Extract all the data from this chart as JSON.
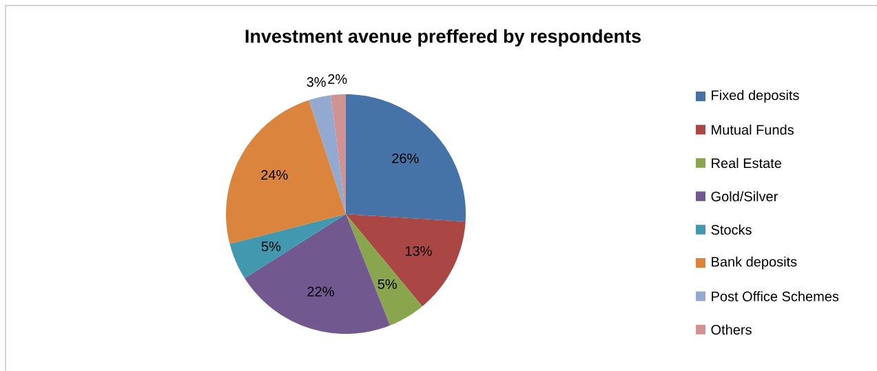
{
  "chart_data": {
    "type": "pie",
    "title": "Investment avenue preffered by respondents",
    "categories": [
      "Fixed deposits",
      "Mutual Funds",
      "Real Estate",
      "Gold/Silver",
      "Stocks",
      "Bank deposits",
      "Post Office Schemes",
      "Others"
    ],
    "values": [
      26,
      13,
      5,
      22,
      5,
      24,
      3,
      2
    ],
    "value_labels": [
      "26%",
      "13%",
      "5%",
      "22%",
      "5%",
      "24%",
      "3%",
      "2%"
    ],
    "colors": [
      "#4572a7",
      "#aa4643",
      "#89a54e",
      "#71588f",
      "#4198af",
      "#db843d",
      "#93a9cf",
      "#d19392"
    ],
    "legend": "right"
  }
}
